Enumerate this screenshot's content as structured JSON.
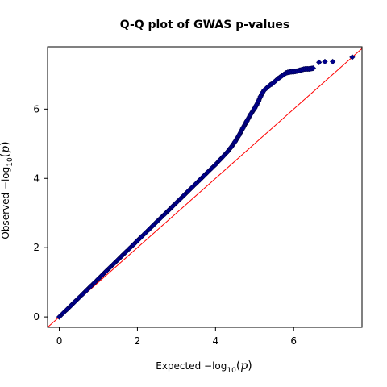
{
  "chart_data": {
    "type": "scatter",
    "title": "Q-Q plot of GWAS p-values",
    "xlabel": {
      "prefix": "Expected  −log",
      "sub": "10",
      "open": "(",
      "var": "p",
      "close": ")"
    },
    "ylabel": {
      "prefix": "Observed  −log",
      "sub": "10",
      "open": "(",
      "var": "p",
      "close": ")"
    },
    "xlim": [
      -0.3,
      7.75
    ],
    "ylim": [
      -0.3,
      7.8
    ],
    "xticks": [
      0,
      2,
      4,
      6
    ],
    "yticks": [
      0,
      2,
      4,
      6
    ],
    "reference_line": {
      "slope": 1,
      "intercept": 0,
      "color": "#ff0000"
    },
    "point_color": "#00008b",
    "series": [
      {
        "marker": "diamond",
        "x": [
          0.0,
          0.1,
          0.2,
          0.3,
          0.4,
          0.5,
          0.6,
          0.7,
          0.8,
          0.9,
          1.0,
          1.1,
          1.2,
          1.3,
          1.4,
          1.5,
          1.6,
          1.7,
          1.8,
          1.9,
          2.0,
          2.1,
          2.2,
          2.3,
          2.4,
          2.5,
          2.6,
          2.7,
          2.8,
          2.9,
          3.0,
          3.1,
          3.2,
          3.3,
          3.4,
          3.5,
          3.6,
          3.7,
          3.8,
          3.9,
          4.0,
          4.1,
          4.2,
          4.3,
          4.4,
          4.5,
          4.6,
          4.7,
          4.8,
          4.9,
          5.0,
          5.05,
          5.1,
          5.15,
          5.2,
          5.25,
          5.3,
          5.35,
          5.4,
          5.45,
          5.5,
          5.55,
          5.6,
          5.65,
          5.7,
          5.75,
          5.8,
          5.85,
          5.9,
          5.95,
          6.0,
          6.05,
          6.1,
          6.15,
          6.2,
          6.25,
          6.3,
          6.35,
          6.4,
          6.45,
          6.5,
          6.65,
          6.8,
          7.0,
          7.5
        ],
        "y": [
          0.0,
          0.11,
          0.22,
          0.33,
          0.44,
          0.55,
          0.66,
          0.77,
          0.88,
          0.99,
          1.1,
          1.21,
          1.32,
          1.43,
          1.54,
          1.65,
          1.76,
          1.87,
          1.98,
          2.09,
          2.2,
          2.31,
          2.42,
          2.53,
          2.64,
          2.75,
          2.86,
          2.97,
          3.08,
          3.19,
          3.3,
          3.41,
          3.52,
          3.63,
          3.74,
          3.85,
          3.96,
          4.07,
          4.18,
          4.29,
          4.4,
          4.52,
          4.64,
          4.76,
          4.9,
          5.06,
          5.24,
          5.45,
          5.65,
          5.85,
          6.02,
          6.12,
          6.23,
          6.36,
          6.47,
          6.55,
          6.6,
          6.65,
          6.7,
          6.73,
          6.78,
          6.83,
          6.88,
          6.92,
          6.96,
          7.0,
          7.04,
          7.06,
          7.07,
          7.08,
          7.08,
          7.09,
          7.1,
          7.12,
          7.13,
          7.15,
          7.16,
          7.16,
          7.16,
          7.17,
          7.18,
          7.35,
          7.37,
          7.37,
          7.5
        ]
      }
    ]
  }
}
